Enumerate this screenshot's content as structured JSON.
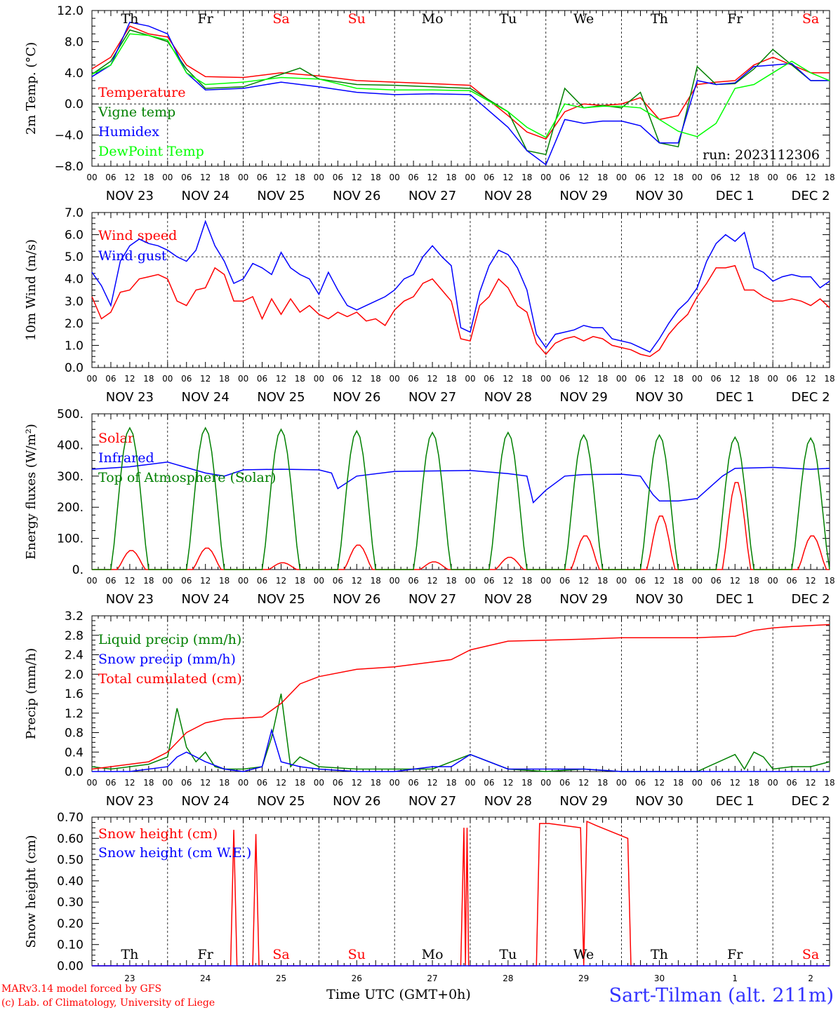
{
  "x_dates": [
    "NOV 23",
    "NOV 24",
    "NOV 25",
    "NOV 26",
    "NOV 27",
    "NOV 28",
    "NOV 29",
    "NOV 30",
    "DEC  1",
    "DEC  2"
  ],
  "x_hours": [
    "00",
    "06",
    "12",
    "18"
  ],
  "days": [
    {
      "label": "Th",
      "color": "#000000"
    },
    {
      "label": "Fr",
      "color": "#000000"
    },
    {
      "label": "Sa",
      "color": "#ff0000"
    },
    {
      "label": "Su",
      "color": "#ff0000"
    },
    {
      "label": "Mo",
      "color": "#000000"
    },
    {
      "label": "Tu",
      "color": "#000000"
    },
    {
      "label": "We",
      "color": "#000000"
    },
    {
      "label": "Th",
      "color": "#000000"
    },
    {
      "label": "Fr",
      "color": "#000000"
    },
    {
      "label": "Sa",
      "color": "#ff0000"
    }
  ],
  "run_label": "run: 2023112306",
  "footer": {
    "model": "MARv3.14 model forced by GFS",
    "lab": "(c) Lab. of Climatology, University of Liege",
    "time_label": "Time UTC (GMT+0h)",
    "station": "Sart-Tilman (alt. 211m)",
    "day_numbers": [
      "23",
      "24",
      "25",
      "26",
      "27",
      "28",
      "29",
      "30",
      "1",
      "2"
    ]
  },
  "chart_data": [
    {
      "type": "line",
      "ylabel": "2m Temp. (°C)",
      "yticks": [
        "12.0",
        "8.0",
        "4.0",
        "0.0",
        "−4.0",
        "−8.0"
      ],
      "ylim": [
        -8,
        12
      ],
      "ref_line": 0,
      "x_unit": "hours since NOV 23 00 UTC",
      "series": [
        {
          "name": "Temperature",
          "color": "#ff0000",
          "x": [
            0,
            6,
            12,
            18,
            24,
            30,
            36,
            48,
            60,
            72,
            84,
            96,
            108,
            120,
            132,
            138,
            144,
            150,
            156,
            162,
            168,
            174,
            180,
            186,
            192,
            198,
            204,
            210,
            216,
            222,
            228,
            234
          ],
          "y": [
            4.5,
            6,
            10,
            9,
            8.6,
            5,
            3.5,
            3.4,
            4,
            3.6,
            3,
            2.8,
            2.6,
            2.4,
            -1.5,
            -3.6,
            -4.5,
            -1,
            0,
            -0.2,
            0,
            0.8,
            -2,
            -1.5,
            2.5,
            2.8,
            3,
            5,
            6,
            5,
            4,
            4
          ]
        },
        {
          "name": "Vigne temp",
          "color": "#008000",
          "x": [
            0,
            6,
            12,
            18,
            24,
            30,
            36,
            48,
            60,
            66,
            72,
            84,
            96,
            108,
            120,
            132,
            138,
            144,
            150,
            156,
            162,
            168,
            174,
            180,
            186,
            192,
            198,
            204,
            210,
            216,
            222,
            228,
            234
          ],
          "y": [
            3.8,
            5.5,
            9.5,
            8.8,
            8,
            4.5,
            2,
            2.2,
            3.8,
            4.6,
            3.2,
            2.5,
            2.4,
            2.2,
            2,
            -1,
            -6,
            -6.5,
            2,
            -0.5,
            -0.2,
            -0.5,
            1.5,
            -5,
            -5.5,
            4.8,
            2.5,
            2.6,
            4.5,
            7,
            5,
            3,
            3
          ]
        },
        {
          "name": "Humidex",
          "color": "#0000ff",
          "x": [
            0,
            6,
            12,
            18,
            24,
            30,
            36,
            48,
            60,
            72,
            84,
            96,
            108,
            120,
            132,
            138,
            144,
            150,
            156,
            162,
            168,
            174,
            180,
            186,
            192,
            198,
            204,
            210,
            216,
            222,
            228,
            234
          ],
          "y": [
            3.5,
            5,
            10.5,
            10,
            9,
            4,
            1.8,
            2,
            2.8,
            2.2,
            1.5,
            1.2,
            1.3,
            1.2,
            -3,
            -6,
            -7.8,
            -2,
            -2.5,
            -2.2,
            -2.2,
            -2.8,
            -5,
            -5,
            3,
            2.5,
            2.7,
            4.8,
            5,
            5.2,
            3,
            3
          ]
        },
        {
          "name": "DewPoint Temp",
          "color": "#00ff00",
          "x": [
            0,
            6,
            12,
            18,
            24,
            30,
            36,
            48,
            60,
            72,
            84,
            96,
            108,
            120,
            132,
            138,
            144,
            150,
            156,
            162,
            168,
            174,
            180,
            186,
            192,
            198,
            204,
            210,
            216,
            222,
            228,
            234
          ],
          "y": [
            3.8,
            5,
            9,
            8.8,
            8.2,
            4,
            2.5,
            2.8,
            3.4,
            3.2,
            2,
            1.8,
            1.8,
            1.7,
            -1,
            -3,
            -4.3,
            0,
            -0.5,
            -0.3,
            -0.3,
            -0.5,
            -2,
            -3.5,
            -4.2,
            -2.5,
            2,
            2.5,
            4,
            5.5,
            4,
            3
          ]
        }
      ],
      "legend_placement": "top-left"
    },
    {
      "type": "line",
      "ylabel": "10m Wind (m/s)",
      "yticks": [
        "7.0",
        "6.0",
        "5.0",
        "4.0",
        "3.0",
        "2.0",
        "1.0",
        "0.0"
      ],
      "ylim": [
        0,
        7
      ],
      "ref_line": 5,
      "x_unit": "hours since NOV 23 00 UTC",
      "series": [
        {
          "name": "Wind speed",
          "color": "#ff0000",
          "x": [
            0,
            3,
            6,
            9,
            12,
            15,
            18,
            21,
            24,
            27,
            30,
            33,
            36,
            39,
            42,
            45,
            48,
            51,
            54,
            57,
            60,
            63,
            66,
            69,
            72,
            75,
            78,
            81,
            84,
            87,
            90,
            93,
            96,
            99,
            102,
            105,
            108,
            111,
            114,
            117,
            120,
            123,
            126,
            129,
            132,
            135,
            138,
            141,
            144,
            147,
            150,
            153,
            156,
            159,
            162,
            165,
            168,
            171,
            174,
            177,
            180,
            183,
            186,
            189,
            192,
            195,
            198,
            201,
            204,
            207,
            210,
            213,
            216,
            219,
            222,
            225,
            228,
            231,
            234
          ],
          "y": [
            3.2,
            2.2,
            2.5,
            3.4,
            3.5,
            4,
            4.1,
            4.2,
            4,
            3,
            2.8,
            3.5,
            3.6,
            4.5,
            4.2,
            3,
            3,
            3.2,
            2.2,
            3.1,
            2.4,
            3.1,
            2.5,
            2.8,
            2.4,
            2.2,
            2.5,
            2.3,
            2.5,
            2.1,
            2.2,
            1.9,
            2.6,
            3,
            3.2,
            3.8,
            4,
            3.5,
            3,
            1.3,
            1.2,
            2.8,
            3.2,
            4,
            3.6,
            2.8,
            2.5,
            1.1,
            0.6,
            1.1,
            1.3,
            1.4,
            1.2,
            1.4,
            1.3,
            1,
            0.9,
            0.8,
            0.6,
            0.5,
            0.8,
            1.5,
            2,
            2.4,
            3.2,
            3.8,
            4.5,
            4.5,
            4.6,
            3.5,
            3.5,
            3.2,
            3,
            3,
            3.1,
            3,
            2.8,
            3.1,
            2.7
          ]
        },
        {
          "name": "Wind gust",
          "color": "#0000ff",
          "x": [
            0,
            3,
            6,
            9,
            12,
            15,
            18,
            21,
            24,
            27,
            30,
            33,
            36,
            39,
            42,
            45,
            48,
            51,
            54,
            57,
            60,
            63,
            66,
            69,
            72,
            75,
            78,
            81,
            84,
            87,
            90,
            93,
            96,
            99,
            102,
            105,
            108,
            111,
            114,
            117,
            120,
            123,
            126,
            129,
            132,
            135,
            138,
            141,
            144,
            147,
            150,
            153,
            156,
            159,
            162,
            165,
            168,
            171,
            174,
            177,
            180,
            183,
            186,
            189,
            192,
            195,
            198,
            201,
            204,
            207,
            210,
            213,
            216,
            219,
            222,
            225,
            228,
            231,
            234
          ],
          "y": [
            4.3,
            3.7,
            2.8,
            4.8,
            5.5,
            5.8,
            5.6,
            5.5,
            5.3,
            5,
            4.8,
            5.3,
            6.6,
            5.5,
            4.8,
            3.8,
            4,
            4.7,
            4.5,
            4.2,
            5.2,
            4.5,
            4.2,
            4,
            3.3,
            4.3,
            3.5,
            2.8,
            2.6,
            2.8,
            3,
            3.2,
            3.5,
            4,
            4.2,
            5,
            5.5,
            5,
            4.6,
            1.8,
            1.6,
            3.4,
            4.6,
            5.3,
            5.1,
            4.5,
            3.5,
            1.5,
            0.9,
            1.5,
            1.6,
            1.7,
            1.9,
            1.8,
            1.8,
            1.3,
            1.2,
            1.1,
            0.9,
            0.7,
            1.3,
            2,
            2.6,
            3,
            3.6,
            4.8,
            5.6,
            6,
            5.7,
            6.1,
            4.5,
            4.3,
            3.9,
            4.1,
            4.2,
            4.1,
            4.1,
            3.6,
            3.9
          ]
        }
      ],
      "legend_placement": "top-left"
    },
    {
      "type": "line",
      "ylabel": "Energy fluxes (W/m²)",
      "yticks": [
        "500.",
        "400.",
        "300.",
        "200.",
        "100.",
        "0."
      ],
      "ylim": [
        0,
        500
      ],
      "x_unit": "hours since NOV 23 00 UTC",
      "series": [
        {
          "name": "Solar",
          "color": "#ff0000",
          "diurnal_peaks": [
            62,
            70,
            22,
            80,
            25,
            40,
            110,
            175,
            285,
            110
          ]
        },
        {
          "name": "Infrared",
          "color": "#0000ff",
          "x": [
            0,
            12,
            24,
            36,
            42,
            48,
            60,
            72,
            76,
            78,
            84,
            96,
            120,
            132,
            138,
            140,
            144,
            150,
            156,
            168,
            174,
            178,
            180,
            186,
            192,
            200,
            204,
            216,
            228,
            234
          ],
          "y": [
            322,
            330,
            345,
            310,
            300,
            320,
            322,
            320,
            310,
            260,
            300,
            315,
            318,
            308,
            300,
            215,
            255,
            300,
            305,
            306,
            300,
            240,
            220,
            220,
            228,
            300,
            325,
            328,
            322,
            325
          ]
        },
        {
          "name": "Top of Atmosphere (Solar)",
          "color": "#008000",
          "diurnal_peaks": [
            455,
            455,
            450,
            445,
            440,
            440,
            432,
            432,
            425,
            422
          ]
        }
      ],
      "legend_placement": "top-left"
    },
    {
      "type": "line",
      "ylabel": "Precip (mm/h)",
      "yticks": [
        "3.2",
        "2.8",
        "2.4",
        "2.0",
        "1.6",
        "1.2",
        "0.8",
        "0.4",
        "0.0"
      ],
      "ylim": [
        0,
        3.2
      ],
      "x_unit": "hours since NOV 23 00 UTC",
      "series": [
        {
          "name": "Liquid precip (mm/h)",
          "color": "#008000",
          "x": [
            0,
            6,
            12,
            18,
            24,
            27,
            30,
            33,
            36,
            39,
            42,
            48,
            54,
            57,
            60,
            63,
            66,
            72,
            84,
            96,
            108,
            120,
            132,
            144,
            156,
            168,
            180,
            192,
            204,
            207,
            210,
            213,
            216,
            222,
            228,
            234
          ],
          "y": [
            0.1,
            0.05,
            0.1,
            0.15,
            0.3,
            1.3,
            0.5,
            0.2,
            0.4,
            0.1,
            0.05,
            0.05,
            0.1,
            0.7,
            1.6,
            0.1,
            0.3,
            0.1,
            0.05,
            0.05,
            0.05,
            0.35,
            0.05,
            0,
            0.05,
            0,
            0,
            0,
            0.35,
            0.05,
            0.4,
            0.3,
            0.05,
            0.1,
            0.1,
            0.2
          ]
        },
        {
          "name": "Snow precip (mm/h)",
          "color": "#0000ff",
          "x": [
            0,
            12,
            24,
            27,
            30,
            36,
            42,
            48,
            54,
            57,
            60,
            66,
            72,
            84,
            96,
            108,
            114,
            120,
            132,
            144,
            156,
            168,
            180,
            204,
            234
          ],
          "y": [
            0,
            0,
            0.1,
            0.3,
            0.4,
            0.2,
            0.05,
            0,
            0.1,
            0.85,
            0.2,
            0.1,
            0.05,
            0,
            0,
            0.1,
            0.1,
            0.35,
            0.05,
            0.05,
            0.05,
            0,
            0,
            0,
            0
          ]
        },
        {
          "name": "Total cumulated (cm)",
          "color": "#ff0000",
          "x": [
            0,
            6,
            12,
            18,
            24,
            30,
            36,
            42,
            48,
            54,
            60,
            66,
            72,
            84,
            96,
            108,
            114,
            120,
            132,
            144,
            156,
            168,
            180,
            192,
            204,
            210,
            216,
            222,
            228,
            234
          ],
          "y": [
            0.05,
            0.1,
            0.15,
            0.2,
            0.4,
            0.8,
            1.0,
            1.08,
            1.1,
            1.12,
            1.4,
            1.8,
            1.95,
            2.1,
            2.15,
            2.25,
            2.3,
            2.5,
            2.68,
            2.7,
            2.72,
            2.75,
            2.75,
            2.75,
            2.78,
            2.9,
            2.95,
            2.98,
            3.0,
            3.02
          ]
        }
      ],
      "legend_placement": "top-left"
    },
    {
      "type": "line",
      "ylabel": "Snow height (cm)",
      "yticks": [
        "0.70",
        "0.60",
        "0.50",
        "0.40",
        "0.30",
        "0.20",
        "0.10",
        "0.00"
      ],
      "ylim": [
        0,
        0.7
      ],
      "x_unit": "hours since NOV 23 00 UTC",
      "series": [
        {
          "name": "Snow height (cm)",
          "color": "#ff0000",
          "x": [
            0,
            44,
            45,
            46,
            51,
            52,
            53,
            117,
            118,
            118.5,
            119,
            119.5,
            120,
            141,
            142,
            145,
            150,
            155,
            156,
            157,
            160,
            165,
            170,
            171,
            234
          ],
          "y": [
            0,
            0,
            0.64,
            0,
            0,
            0.62,
            0,
            0,
            0.65,
            0,
            0.65,
            0,
            0,
            0,
            0.67,
            0.67,
            0.66,
            0.65,
            0,
            0.68,
            0.66,
            0.63,
            0.6,
            0,
            0
          ]
        },
        {
          "name": "Snow height (cm W.E.)",
          "color": "#0000ff",
          "x": [
            0,
            234
          ],
          "y": [
            0,
            0
          ]
        }
      ],
      "legend_placement": "top-left"
    }
  ]
}
